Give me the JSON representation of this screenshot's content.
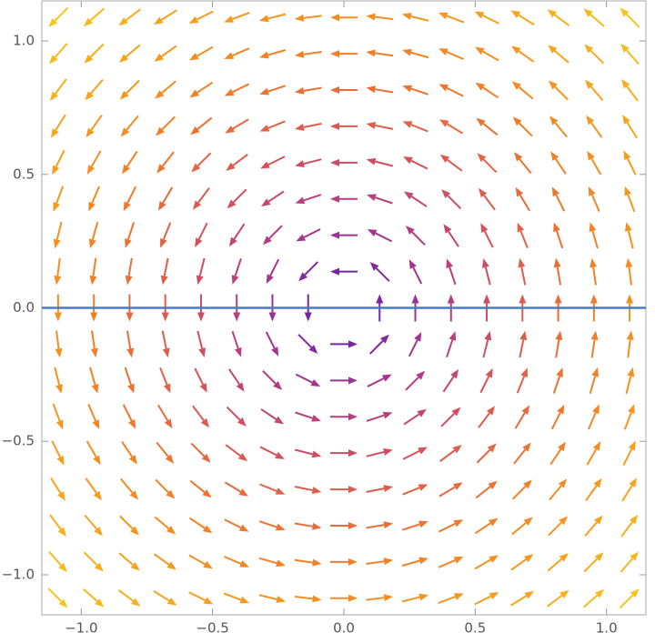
{
  "chart_data": {
    "type": "vector",
    "xlim": [
      -1.15,
      1.15
    ],
    "ylim": [
      -1.15,
      1.15
    ],
    "xticks": [
      {
        "value": -1,
        "label": "−1.0"
      },
      {
        "value": -0.5,
        "label": "−0.5"
      },
      {
        "value": 0,
        "label": "0.0"
      },
      {
        "value": 0.5,
        "label": "0.5"
      },
      {
        "value": 1,
        "label": "1.0"
      }
    ],
    "yticks": [
      {
        "value": -1,
        "label": "−1.0"
      },
      {
        "value": -0.5,
        "label": "−0.5"
      },
      {
        "value": 0,
        "label": "0.0"
      },
      {
        "value": 0.5,
        "label": "0.5"
      },
      {
        "value": 1,
        "label": "1.0"
      }
    ],
    "x": [
      -1.088,
      -0.952,
      -0.816,
      -0.68,
      -0.544,
      -0.408,
      -0.272,
      -0.136,
      0,
      0.136,
      0.272,
      0.408,
      0.544,
      0.68,
      0.816,
      0.952,
      1.088
    ],
    "y": [
      -1.088,
      -0.952,
      -0.816,
      -0.68,
      -0.544,
      -0.408,
      -0.272,
      -0.136,
      0,
      0.136,
      0.272,
      0.408,
      0.544,
      0.68,
      0.816,
      0.952,
      1.088
    ],
    "u": [
      [
        1.088,
        1.088,
        1.088,
        1.088,
        1.088,
        1.088,
        1.088,
        1.088,
        1.088,
        1.088,
        1.088,
        1.088,
        1.088,
        1.088,
        1.088,
        1.088,
        1.088
      ],
      [
        0.952,
        0.952,
        0.952,
        0.952,
        0.952,
        0.952,
        0.952,
        0.952,
        0.952,
        0.952,
        0.952,
        0.952,
        0.952,
        0.952,
        0.952,
        0.952,
        0.952
      ],
      [
        0.816,
        0.816,
        0.816,
        0.816,
        0.816,
        0.816,
        0.816,
        0.816,
        0.816,
        0.816,
        0.816,
        0.816,
        0.816,
        0.816,
        0.816,
        0.816,
        0.816
      ],
      [
        0.68,
        0.68,
        0.68,
        0.68,
        0.68,
        0.68,
        0.68,
        0.68,
        0.68,
        0.68,
        0.68,
        0.68,
        0.68,
        0.68,
        0.68,
        0.68,
        0.68
      ],
      [
        0.544,
        0.544,
        0.544,
        0.544,
        0.544,
        0.544,
        0.544,
        0.544,
        0.544,
        0.544,
        0.544,
        0.544,
        0.544,
        0.544,
        0.544,
        0.544,
        0.544
      ],
      [
        0.408,
        0.408,
        0.408,
        0.408,
        0.408,
        0.408,
        0.408,
        0.408,
        0.408,
        0.408,
        0.408,
        0.408,
        0.408,
        0.408,
        0.408,
        0.408,
        0.408
      ],
      [
        0.272,
        0.272,
        0.272,
        0.272,
        0.272,
        0.272,
        0.272,
        0.272,
        0.272,
        0.272,
        0.272,
        0.272,
        0.272,
        0.272,
        0.272,
        0.272,
        0.272
      ],
      [
        0.136,
        0.136,
        0.136,
        0.136,
        0.136,
        0.136,
        0.136,
        0.136,
        0.136,
        0.136,
        0.136,
        0.136,
        0.136,
        0.136,
        0.136,
        0.136,
        0.136
      ],
      [
        0,
        0,
        0,
        0,
        0,
        0,
        0,
        0,
        0,
        0,
        0,
        0,
        0,
        0,
        0,
        0,
        0
      ],
      [
        -0.136,
        -0.136,
        -0.136,
        -0.136,
        -0.136,
        -0.136,
        -0.136,
        -0.136,
        -0.136,
        -0.136,
        -0.136,
        -0.136,
        -0.136,
        -0.136,
        -0.136,
        -0.136,
        -0.136
      ],
      [
        -0.272,
        -0.272,
        -0.272,
        -0.272,
        -0.272,
        -0.272,
        -0.272,
        -0.272,
        -0.272,
        -0.272,
        -0.272,
        -0.272,
        -0.272,
        -0.272,
        -0.272,
        -0.272,
        -0.272
      ],
      [
        -0.408,
        -0.408,
        -0.408,
        -0.408,
        -0.408,
        -0.408,
        -0.408,
        -0.408,
        -0.408,
        -0.408,
        -0.408,
        -0.408,
        -0.408,
        -0.408,
        -0.408,
        -0.408,
        -0.408
      ],
      [
        -0.544,
        -0.544,
        -0.544,
        -0.544,
        -0.544,
        -0.544,
        -0.544,
        -0.544,
        -0.544,
        -0.544,
        -0.544,
        -0.544,
        -0.544,
        -0.544,
        -0.544,
        -0.544,
        -0.544
      ],
      [
        -0.68,
        -0.68,
        -0.68,
        -0.68,
        -0.68,
        -0.68,
        -0.68,
        -0.68,
        -0.68,
        -0.68,
        -0.68,
        -0.68,
        -0.68,
        -0.68,
        -0.68,
        -0.68,
        -0.68
      ],
      [
        -0.816,
        -0.816,
        -0.816,
        -0.816,
        -0.816,
        -0.816,
        -0.816,
        -0.816,
        -0.816,
        -0.816,
        -0.816,
        -0.816,
        -0.816,
        -0.816,
        -0.816,
        -0.816,
        -0.816
      ],
      [
        -0.952,
        -0.952,
        -0.952,
        -0.952,
        -0.952,
        -0.952,
        -0.952,
        -0.952,
        -0.952,
        -0.952,
        -0.952,
        -0.952,
        -0.952,
        -0.952,
        -0.952,
        -0.952,
        -0.952
      ],
      [
        -1.088,
        -1.088,
        -1.088,
        -1.088,
        -1.088,
        -1.088,
        -1.088,
        -1.088,
        -1.088,
        -1.088,
        -1.088,
        -1.088,
        -1.088,
        -1.088,
        -1.088,
        -1.088,
        -1.088
      ]
    ],
    "v": [
      [
        -1.088,
        -0.952,
        -0.816,
        -0.68,
        -0.544,
        -0.408,
        -0.272,
        -0.136,
        0,
        0.136,
        0.272,
        0.408,
        0.544,
        0.68,
        0.816,
        0.952,
        1.088
      ],
      [
        -1.088,
        -0.952,
        -0.816,
        -0.68,
        -0.544,
        -0.408,
        -0.272,
        -0.136,
        0,
        0.136,
        0.272,
        0.408,
        0.544,
        0.68,
        0.816,
        0.952,
        1.088
      ],
      [
        -1.088,
        -0.952,
        -0.816,
        -0.68,
        -0.544,
        -0.408,
        -0.272,
        -0.136,
        0,
        0.136,
        0.272,
        0.408,
        0.544,
        0.68,
        0.816,
        0.952,
        1.088
      ],
      [
        -1.088,
        -0.952,
        -0.816,
        -0.68,
        -0.544,
        -0.408,
        -0.272,
        -0.136,
        0,
        0.136,
        0.272,
        0.408,
        0.544,
        0.68,
        0.816,
        0.952,
        1.088
      ],
      [
        -1.088,
        -0.952,
        -0.816,
        -0.68,
        -0.544,
        -0.408,
        -0.272,
        -0.136,
        0,
        0.136,
        0.272,
        0.408,
        0.544,
        0.68,
        0.816,
        0.952,
        1.088
      ],
      [
        -1.088,
        -0.952,
        -0.816,
        -0.68,
        -0.544,
        -0.408,
        -0.272,
        -0.136,
        0,
        0.136,
        0.272,
        0.408,
        0.544,
        0.68,
        0.816,
        0.952,
        1.088
      ],
      [
        -1.088,
        -0.952,
        -0.816,
        -0.68,
        -0.544,
        -0.408,
        -0.272,
        -0.136,
        0,
        0.136,
        0.272,
        0.408,
        0.544,
        0.68,
        0.816,
        0.952,
        1.088
      ],
      [
        -1.088,
        -0.952,
        -0.816,
        -0.68,
        -0.544,
        -0.408,
        -0.272,
        -0.136,
        0,
        0.136,
        0.272,
        0.408,
        0.544,
        0.68,
        0.816,
        0.952,
        1.088
      ],
      [
        -1.088,
        -0.952,
        -0.816,
        -0.68,
        -0.544,
        -0.408,
        -0.272,
        -0.136,
        0,
        0.136,
        0.272,
        0.408,
        0.544,
        0.68,
        0.816,
        0.952,
        1.088
      ],
      [
        -1.088,
        -0.952,
        -0.816,
        -0.68,
        -0.544,
        -0.408,
        -0.272,
        -0.136,
        0,
        0.136,
        0.272,
        0.408,
        0.544,
        0.68,
        0.816,
        0.952,
        1.088
      ],
      [
        -1.088,
        -0.952,
        -0.816,
        -0.68,
        -0.544,
        -0.408,
        -0.272,
        -0.136,
        0,
        0.136,
        0.272,
        0.408,
        0.544,
        0.68,
        0.816,
        0.952,
        1.088
      ],
      [
        -1.088,
        -0.952,
        -0.816,
        -0.68,
        -0.544,
        -0.408,
        -0.272,
        -0.136,
        0,
        0.136,
        0.272,
        0.408,
        0.544,
        0.68,
        0.816,
        0.952,
        1.088
      ],
      [
        -1.088,
        -0.952,
        -0.816,
        -0.68,
        -0.544,
        -0.408,
        -0.272,
        -0.136,
        0,
        0.136,
        0.272,
        0.408,
        0.544,
        0.68,
        0.816,
        0.952,
        1.088
      ],
      [
        -1.088,
        -0.952,
        -0.816,
        -0.68,
        -0.544,
        -0.408,
        -0.272,
        -0.136,
        0,
        0.136,
        0.272,
        0.408,
        0.544,
        0.68,
        0.816,
        0.952,
        1.088
      ],
      [
        -1.088,
        -0.952,
        -0.816,
        -0.68,
        -0.544,
        -0.408,
        -0.272,
        -0.136,
        0,
        0.136,
        0.272,
        0.408,
        0.544,
        0.68,
        0.816,
        0.952,
        1.088
      ],
      [
        -1.088,
        -0.952,
        -0.816,
        -0.68,
        -0.544,
        -0.408,
        -0.272,
        -0.136,
        0,
        0.136,
        0.272,
        0.408,
        0.544,
        0.68,
        0.816,
        0.952,
        1.088
      ],
      [
        -1.088,
        -0.952,
        -0.816,
        -0.68,
        -0.544,
        -0.408,
        -0.272,
        -0.136,
        0,
        0.136,
        0.272,
        0.408,
        0.544,
        0.68,
        0.816,
        0.952,
        1.088
      ]
    ],
    "colormap": [
      "#5217b5",
      "#a5348f",
      "#d7535a",
      "#f07a28",
      "#f6a01c",
      "#f5c51f"
    ],
    "hline": {
      "y": 0,
      "color": "#4a7cc0"
    }
  }
}
